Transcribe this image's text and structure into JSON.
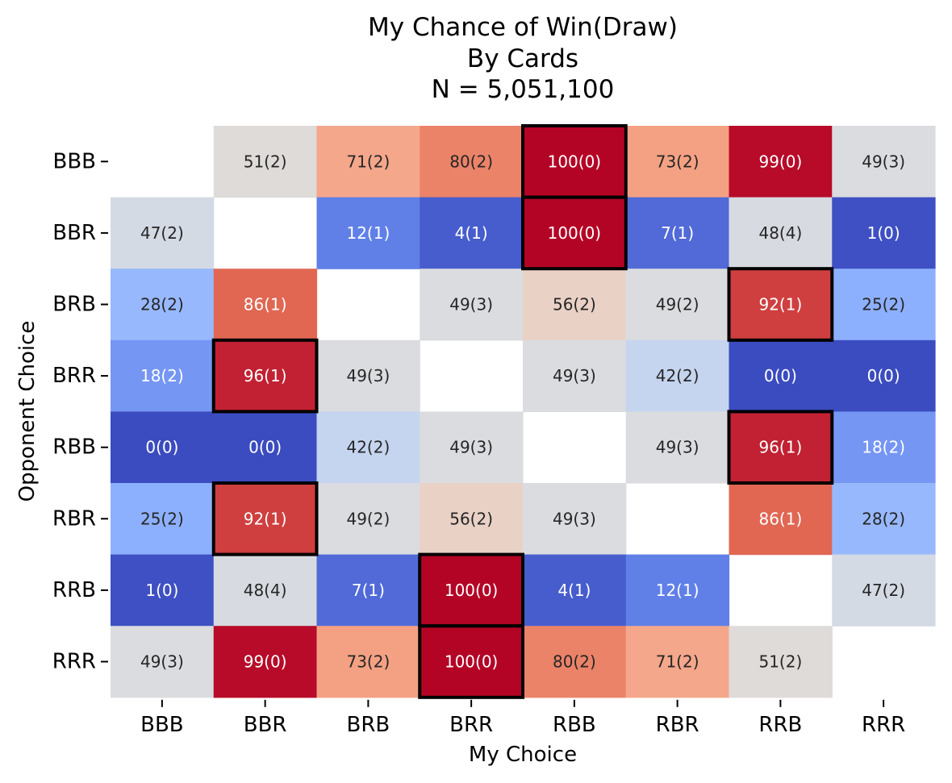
{
  "chart_data": {
    "type": "heatmap",
    "title": [
      "My Chance of Win(Draw)",
      "By Cards",
      "N = 5,051,100"
    ],
    "xlabel": "My Choice",
    "ylabel": "Opponent Choice",
    "x_categories": [
      "BBB",
      "BBR",
      "BRB",
      "BRR",
      "RBB",
      "RBR",
      "RRB",
      "RRR"
    ],
    "y_categories": [
      "BBB",
      "BBR",
      "BRB",
      "BRR",
      "RBB",
      "RBR",
      "RRB",
      "RRR"
    ],
    "win": [
      [
        null,
        51,
        71,
        80,
        100,
        73,
        99,
        49
      ],
      [
        47,
        null,
        12,
        4,
        100,
        7,
        48,
        1
      ],
      [
        28,
        86,
        null,
        49,
        56,
        49,
        92,
        25
      ],
      [
        18,
        96,
        49,
        null,
        49,
        42,
        0,
        0
      ],
      [
        0,
        0,
        42,
        49,
        null,
        49,
        96,
        18
      ],
      [
        25,
        92,
        49,
        56,
        49,
        null,
        86,
        28
      ],
      [
        1,
        48,
        7,
        100,
        4,
        12,
        null,
        47
      ],
      [
        49,
        99,
        73,
        100,
        80,
        71,
        51,
        null
      ]
    ],
    "draw": [
      [
        null,
        2,
        2,
        2,
        0,
        2,
        0,
        3
      ],
      [
        2,
        null,
        1,
        1,
        0,
        1,
        4,
        0
      ],
      [
        2,
        1,
        null,
        3,
        2,
        2,
        1,
        2
      ],
      [
        2,
        1,
        3,
        null,
        3,
        2,
        0,
        0
      ],
      [
        0,
        0,
        2,
        3,
        null,
        3,
        1,
        2
      ],
      [
        2,
        1,
        2,
        2,
        3,
        null,
        1,
        2
      ],
      [
        0,
        4,
        1,
        0,
        1,
        1,
        null,
        2
      ],
      [
        3,
        0,
        2,
        0,
        2,
        2,
        2,
        null
      ]
    ],
    "highlighted_best_response": [
      {
        "opponent": "BBB",
        "my": "RBB"
      },
      {
        "opponent": "BBR",
        "my": "RBB"
      },
      {
        "opponent": "BRB",
        "my": "RRB"
      },
      {
        "opponent": "BRR",
        "my": "BBR"
      },
      {
        "opponent": "RBB",
        "my": "RRB"
      },
      {
        "opponent": "RBR",
        "my": "BBR"
      },
      {
        "opponent": "RRB",
        "my": "BRR"
      },
      {
        "opponent": "RRR",
        "my": "BRR"
      }
    ],
    "colormap": "coolwarm",
    "vmin": 0,
    "vmax": 100,
    "colorbar": false,
    "grid": false
  }
}
